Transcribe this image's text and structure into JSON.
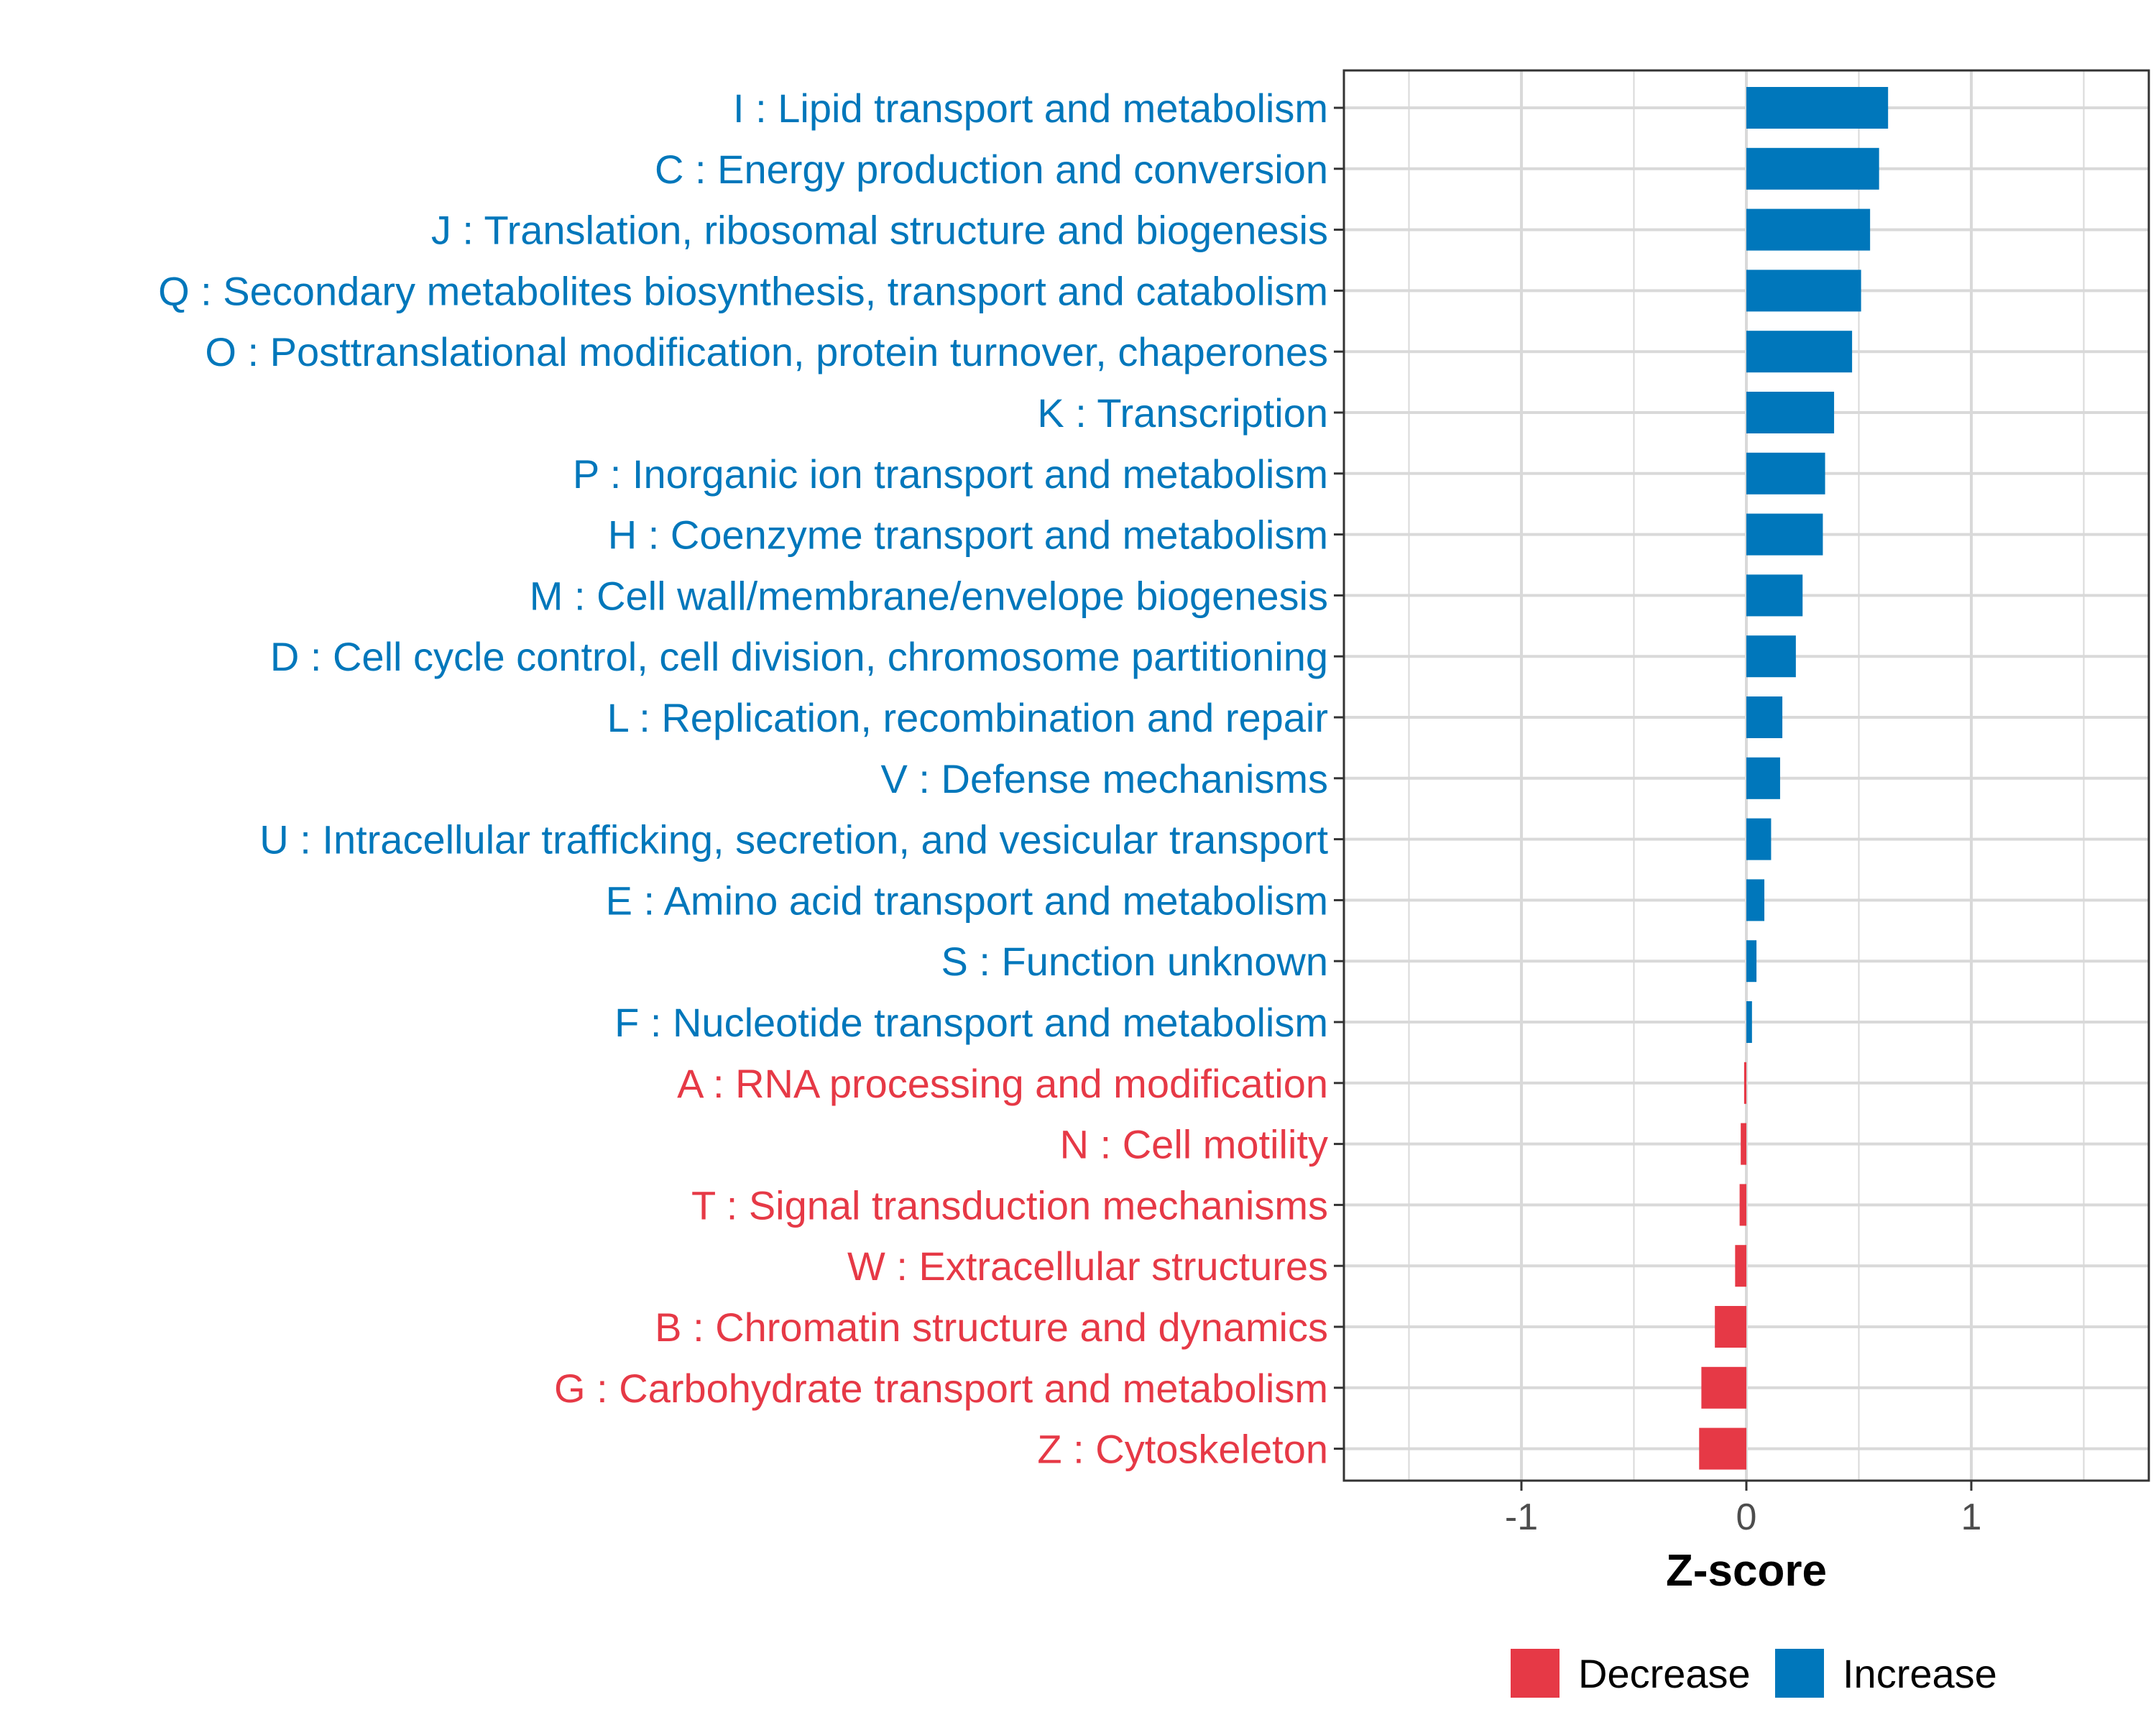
{
  "chart_data": {
    "type": "bar",
    "orientation": "horizontal",
    "title": "",
    "xlabel": "Z-score",
    "ylabel": "",
    "xlim": [
      -1.8,
      1.8
    ],
    "xticks": [
      -1,
      0,
      1
    ],
    "xtick_labels": [
      "-1",
      "0",
      "1"
    ],
    "grid": true,
    "legend_position": "bottom",
    "categories": [
      "I : Lipid transport and metabolism",
      "C : Energy production and conversion",
      "J : Translation, ribosomal structure and biogenesis",
      "Q : Secondary metabolites biosynthesis, transport and catabolism",
      "O : Posttranslational modification, protein turnover, chaperones",
      "K : Transcription",
      "P : Inorganic ion transport and metabolism",
      "H : Coenzyme transport and metabolism",
      "M : Cell wall/membrane/envelope biogenesis",
      "D : Cell cycle control, cell division, chromosome partitioning",
      "L : Replication, recombination and repair",
      "V : Defense mechanisms",
      "U : Intracellular trafficking, secretion, and vesicular transport",
      "E : Amino acid transport and metabolism",
      "S : Function unknown",
      "F : Nucleotide transport and metabolism",
      "A : RNA processing and modification",
      "N : Cell motility",
      "T : Signal transduction mechanisms",
      "W : Extracellular structures",
      "B : Chromatin structure and dynamics",
      "G : Carbohydrate transport and metabolism",
      "Z : Cytoskeleton"
    ],
    "values": [
      0.63,
      0.59,
      0.55,
      0.51,
      0.47,
      0.39,
      0.35,
      0.34,
      0.25,
      0.22,
      0.16,
      0.15,
      0.11,
      0.08,
      0.045,
      0.025,
      -0.01,
      -0.025,
      -0.03,
      -0.05,
      -0.14,
      -0.2,
      -0.21
    ],
    "groups": [
      "Increase",
      "Increase",
      "Increase",
      "Increase",
      "Increase",
      "Increase",
      "Increase",
      "Increase",
      "Increase",
      "Increase",
      "Increase",
      "Increase",
      "Increase",
      "Increase",
      "Increase",
      "Increase",
      "Decrease",
      "Decrease",
      "Decrease",
      "Decrease",
      "Decrease",
      "Decrease",
      "Decrease"
    ],
    "legend": [
      {
        "name": "Decrease",
        "color": "#e63946"
      },
      {
        "name": "Increase",
        "color": "#0077bb"
      }
    ]
  },
  "colors": {
    "increase": "#0077bb",
    "decrease": "#e63946",
    "grid": "#d9d9d9",
    "panel_border": "#333333"
  }
}
